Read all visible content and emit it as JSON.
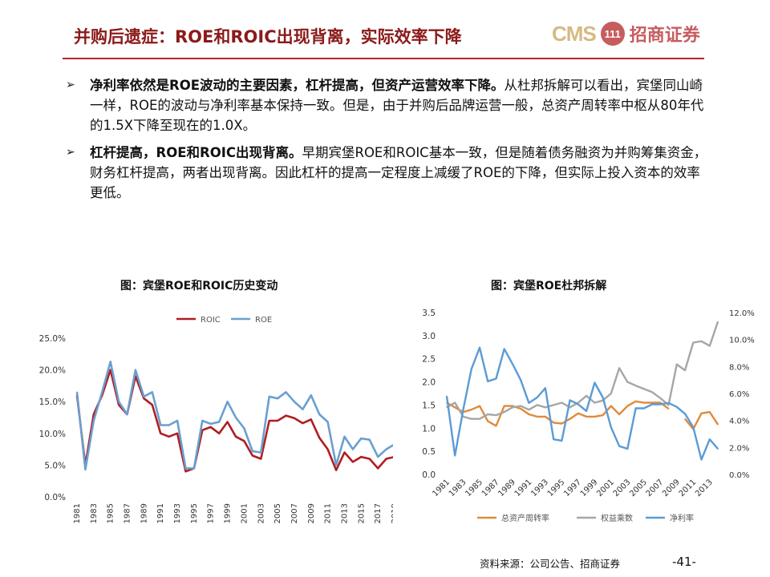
{
  "header": {
    "title": "并购后遗症：ROE和ROIC出现背离，实际效率下降",
    "logo_text": "CMS",
    "logo_mark": "111",
    "logo_cn": "招商证券"
  },
  "bullets": [
    {
      "bold": "净利率依然是ROE波动的主要因素，杠杆提高，但资产运营效率下降。",
      "text": "从杜邦拆解可以看出，宾堡同山崎一样，ROE的波动与净利率基本保持一致。但是，由于并购后品牌运营一般，总资产周转率中枢从80年代的1.5X下降至现在的1.0X。"
    },
    {
      "bold": "杠杆提高，ROE和ROIC出现背离。",
      "text": "早期宾堡ROE和ROIC基本一致，但是随着债务融资为并购筹集资金，财务杠杆提高，两者出现背离。因此杠杆的提高一定程度上减缓了ROE的下降，但实际上投入资本的效率更低。"
    }
  ],
  "footer": {
    "source": "资料来源：公司公告、招商证券",
    "page_number": "-41-"
  },
  "chart_data": [
    {
      "type": "line",
      "title": "图：宾堡ROE和ROIC历史变动",
      "x": [
        1981,
        1982,
        1983,
        1984,
        1985,
        1986,
        1987,
        1988,
        1989,
        1990,
        1991,
        1992,
        1993,
        1994,
        1995,
        1996,
        1997,
        1998,
        1999,
        2000,
        2001,
        2002,
        2003,
        2004,
        2005,
        2006,
        2007,
        2008,
        2009,
        2010,
        2011,
        2012,
        2013,
        2014,
        2015,
        2016,
        2017,
        2018,
        2019
      ],
      "x_ticks": [
        "1981",
        "1983",
        "1985",
        "1987",
        "1989",
        "1991",
        "1993",
        "1995",
        "1997",
        "1999",
        "2001",
        "2003",
        "2005",
        "2007",
        "2009",
        "2011",
        "2013",
        "2015",
        "2017",
        "2019"
      ],
      "y_ticks": [
        "0.0%",
        "5.0%",
        "10.0%",
        "15.0%",
        "20.0%",
        "25.0%"
      ],
      "ylim": [
        0,
        0.25
      ],
      "legend_position": "top",
      "grid": false,
      "series": [
        {
          "name": "ROIC",
          "color": "#b01e23",
          "values": [
            0.16,
            0.05,
            0.13,
            0.16,
            0.2,
            0.145,
            0.13,
            0.19,
            0.155,
            0.145,
            0.1,
            0.095,
            0.1,
            0.04,
            0.045,
            0.105,
            0.11,
            0.1,
            0.118,
            0.095,
            0.088,
            0.065,
            0.06,
            0.12,
            0.12,
            0.128,
            0.124,
            0.116,
            0.122,
            0.093,
            0.075,
            0.042,
            0.07,
            0.055,
            0.063,
            0.06,
            0.045,
            0.06,
            0.063
          ]
        },
        {
          "name": "ROE",
          "color": "#6a9fd0",
          "values": [
            0.165,
            0.043,
            0.12,
            0.165,
            0.213,
            0.15,
            0.13,
            0.2,
            0.158,
            0.165,
            0.113,
            0.113,
            0.12,
            0.045,
            0.045,
            0.12,
            0.115,
            0.118,
            0.15,
            0.125,
            0.108,
            0.072,
            0.07,
            0.158,
            0.155,
            0.165,
            0.15,
            0.138,
            0.16,
            0.13,
            0.118,
            0.05,
            0.095,
            0.075,
            0.092,
            0.09,
            0.063,
            0.075,
            0.083
          ]
        }
      ]
    },
    {
      "type": "line",
      "title": "图：宾堡ROE杜邦拆解",
      "x": [
        1981,
        1982,
        1983,
        1984,
        1985,
        1986,
        1987,
        1988,
        1989,
        1990,
        1991,
        1992,
        1993,
        1994,
        1995,
        1996,
        1997,
        1998,
        1999,
        2000,
        2001,
        2002,
        2003,
        2004,
        2005,
        2006,
        2007,
        2008,
        2009,
        2010,
        2011,
        2012,
        2013,
        2014
      ],
      "x_ticks": [
        "1981",
        "1983",
        "1985",
        "1987",
        "1989",
        "1991",
        "1993",
        "1995",
        "1997",
        "1999",
        "2001",
        "2003",
        "2005",
        "2007",
        "2009",
        "2011",
        "2013"
      ],
      "y_left_ticks": [
        "0.0",
        "0.5",
        "1.0",
        "1.5",
        "2.0",
        "2.5",
        "3.0",
        "3.5"
      ],
      "y_right_ticks": [
        "0.0%",
        "2.0%",
        "4.0%",
        "6.0%",
        "8.0%",
        "10.0%",
        "12.0%"
      ],
      "ylim_left": [
        0,
        3.5
      ],
      "ylim_right": [
        0,
        0.12
      ],
      "legend_position": "bottom",
      "grid": false,
      "series": [
        {
          "name": "总资产周转率",
          "axis": "left",
          "color": "#e08a3c",
          "values": [
            1.55,
            1.45,
            1.35,
            1.4,
            1.48,
            1.15,
            1.05,
            1.48,
            1.48,
            1.42,
            1.3,
            1.25,
            1.25,
            1.12,
            1.1,
            1.2,
            1.32,
            1.25,
            1.25,
            1.28,
            1.48,
            1.3,
            1.48,
            1.58,
            1.55,
            1.55,
            1.55,
            1.42,
            null,
            1.2,
            0.98,
            1.32,
            1.35,
            1.08
          ]
        },
        {
          "name": "权益乘数",
          "axis": "left",
          "color": "#a6a6a6",
          "values": [
            1.45,
            1.55,
            1.25,
            1.2,
            1.2,
            1.3,
            1.28,
            1.35,
            1.45,
            1.48,
            1.4,
            1.5,
            1.45,
            1.5,
            1.55,
            1.45,
            1.55,
            1.7,
            1.55,
            1.6,
            1.75,
            2.3,
            2.0,
            1.92,
            1.85,
            1.78,
            1.65,
            1.5,
            2.38,
            2.25,
            2.85,
            2.88,
            2.78,
            3.3
          ]
        },
        {
          "name": "净利率",
          "axis": "right",
          "color": "#5b9bd5",
          "values": [
            0.058,
            0.014,
            0.048,
            0.078,
            0.094,
            0.069,
            0.071,
            0.093,
            0.082,
            0.07,
            0.053,
            0.057,
            0.064,
            0.026,
            0.025,
            0.055,
            0.052,
            0.047,
            0.068,
            0.057,
            0.035,
            0.021,
            0.019,
            0.049,
            0.049,
            0.052,
            0.052,
            0.053,
            0.05,
            0.045,
            0.035,
            0.011,
            0.026,
            0.019
          ]
        }
      ]
    }
  ]
}
